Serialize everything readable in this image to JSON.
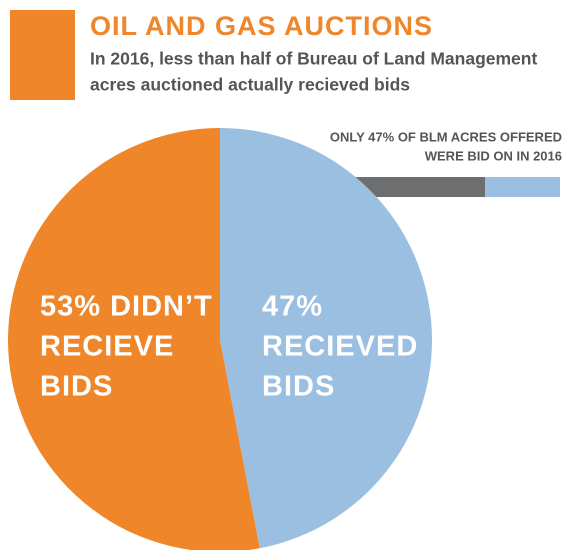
{
  "chart_data": {
    "type": "pie",
    "title": "OIL AND GAS AUCTIONS",
    "subtitle": [
      "In 2016, less than half of Bureau of Land Management",
      "acres auctioned actually recieved bids"
    ],
    "annotation": [
      "ONLY 47% OF BLM ACRES OFFERED",
      "WERE BID ON IN 2016"
    ],
    "values": [
      47,
      53
    ],
    "labels": [
      [
        "47%",
        "RECIEVED",
        "BIDS"
      ],
      [
        "53% DIDN’T",
        "RECIEVE",
        "BIDS"
      ]
    ],
    "colors": [
      "#9bbfe0",
      "#f0862a"
    ]
  }
}
